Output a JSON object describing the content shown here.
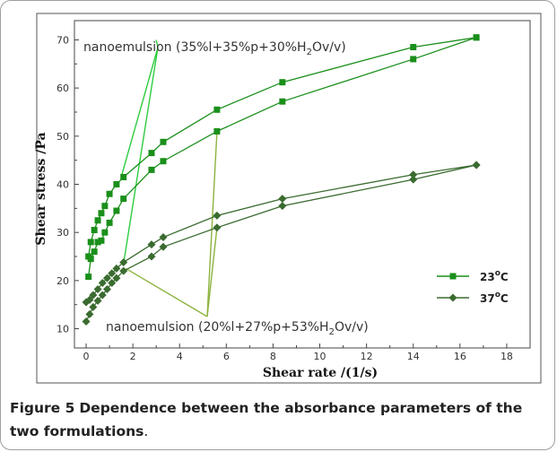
{
  "chart_data": {
    "type": "line",
    "xlabel": "Shear rate /(1/s)",
    "ylabel": "Shear stress /Pa",
    "xlim": [
      -0.5,
      19
    ],
    "ylim": [
      6,
      74
    ],
    "xticks": [
      0,
      2,
      4,
      6,
      8,
      10,
      12,
      14,
      16,
      18
    ],
    "yticks": [
      10,
      20,
      30,
      40,
      50,
      60,
      70
    ],
    "grid": false,
    "legend_position": "bottom-right",
    "series": [
      {
        "name": "23°C",
        "marker": "square",
        "color": "#1a8f1a",
        "branches": [
          {
            "x": [
              0.1,
              0.2,
              0.35,
              0.5,
              0.65,
              0.8,
              1.0,
              1.3,
              1.6,
              2.8,
              3.3,
              5.6,
              8.4,
              14.0,
              16.7
            ],
            "y": [
              20.8,
              24.5,
              26.0,
              28.0,
              28.3,
              30.0,
              32.0,
              34.5,
              37.0,
              43.0,
              44.8,
              51.0,
              57.2,
              66.0,
              70.5
            ]
          },
          {
            "x": [
              0.1,
              0.2,
              0.35,
              0.5,
              0.65,
              0.8,
              1.0,
              1.3,
              1.6,
              2.8,
              3.3,
              5.6,
              8.4,
              14.0,
              16.7
            ],
            "y": [
              25.0,
              28.0,
              30.5,
              32.5,
              34.0,
              35.5,
              38.0,
              40.0,
              41.5,
              46.5,
              48.8,
              55.5,
              61.2,
              68.5,
              70.5
            ]
          }
        ]
      },
      {
        "name": "37°C",
        "marker": "diamond",
        "color": "#3a6b2f",
        "branches": [
          {
            "x": [
              0.0,
              0.15,
              0.3,
              0.5,
              0.7,
              0.9,
              1.1,
              1.3,
              1.6,
              2.8,
              3.3,
              5.6,
              8.4,
              14.0,
              16.7
            ],
            "y": [
              11.5,
              13.0,
              14.5,
              15.8,
              17.0,
              18.2,
              19.5,
              20.5,
              22.0,
              25.0,
              27.0,
              31.0,
              35.5,
              41.0,
              44.0
            ]
          },
          {
            "x": [
              0.0,
              0.15,
              0.3,
              0.5,
              0.7,
              0.9,
              1.1,
              1.3,
              1.6,
              2.8,
              3.3,
              5.6,
              8.4,
              14.0,
              16.7
            ],
            "y": [
              15.5,
              16.0,
              17.0,
              18.2,
              19.5,
              20.5,
              21.5,
              22.5,
              23.8,
              27.5,
              29.0,
              33.5,
              37.0,
              42.0,
              44.0
            ]
          }
        ]
      }
    ],
    "annotations": [
      {
        "text": "nanoemulsion (35%l+35%p+30%H2Ov/v)",
        "color": "#2ecc40",
        "pointer_targets": [
          [
            1.6,
            23.5
          ],
          [
            3.0,
            70.0
          ],
          [
            1.5,
            41.5
          ]
        ]
      },
      {
        "text": "nanoemulsion (20%l+27%p+53%H2Ov/v)",
        "color": "#8db33f",
        "pointer_targets": [
          [
            5.6,
            51.0
          ],
          [
            5.6,
            31.0
          ],
          [
            1.7,
            22.5
          ]
        ]
      }
    ]
  },
  "caption": {
    "label": "Figure 5",
    "title": "Dependence between the absorbance parameters of the two formulations",
    "end": "."
  }
}
